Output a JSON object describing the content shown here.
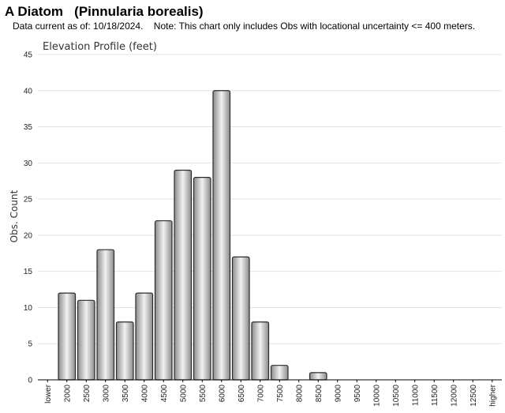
{
  "header": {
    "title": "A Diatom   (Pinnularia borealis)",
    "subtitle": "Data current as of: 10/18/2024.    Note: This chart only includes Obs with locational uncertainty <= 400 meters."
  },
  "chart_data": {
    "type": "bar",
    "title": "Elevation Profile (feet)",
    "xlabel": "",
    "ylabel": "Obs. Count",
    "ylim": [
      0,
      45
    ],
    "yticks": [
      0,
      5,
      10,
      15,
      20,
      25,
      30,
      35,
      40,
      45
    ],
    "grid": true,
    "categories": [
      "lower",
      "2000",
      "2500",
      "3000",
      "3500",
      "4000",
      "4500",
      "5000",
      "5500",
      "6000",
      "6500",
      "7000",
      "7500",
      "8000",
      "8500",
      "9000",
      "9500",
      "10000",
      "10500",
      "11000",
      "11500",
      "12000",
      "12500",
      "higher"
    ],
    "values": [
      0,
      12,
      11,
      18,
      8,
      12,
      22,
      29,
      28,
      40,
      17,
      8,
      2,
      0,
      1,
      0,
      0,
      0,
      0,
      0,
      0,
      0,
      0,
      0
    ],
    "colors": {
      "bar_light": "#f2f2f2",
      "bar_dark": "#8c8c8c",
      "bar_stroke": "#2b2b2b",
      "grid": "#e2e2e2",
      "axis": "#000000"
    }
  }
}
